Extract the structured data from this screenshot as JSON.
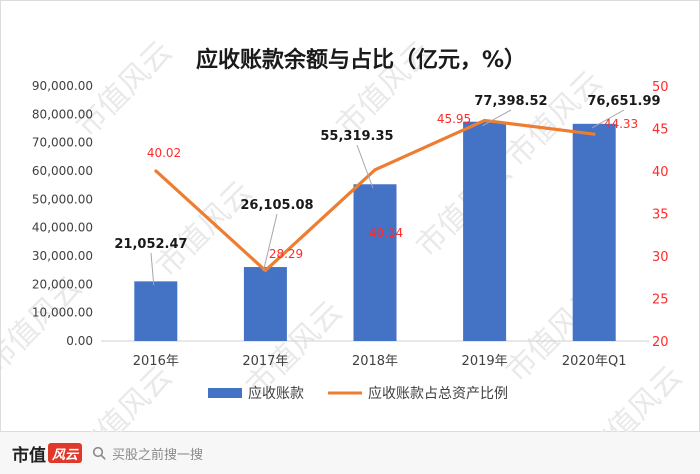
{
  "chart_data": {
    "type": "bar",
    "title": "应收账款余额与占比（亿元，%）",
    "categories": [
      "2016年",
      "2017年",
      "2018年",
      "2019年",
      "2020年Q1"
    ],
    "series": [
      {
        "name": "应收账款",
        "type": "bar",
        "axis": "left",
        "values": [
          21052.47,
          26105.08,
          55319.35,
          77398.52,
          76651.99
        ],
        "labels": [
          "21,052.47",
          "26,105.08",
          "55,319.35",
          "77,398.52",
          "76,651.99"
        ],
        "color": "#4472c4"
      },
      {
        "name": "应收账款占总资产比例",
        "type": "line",
        "axis": "right",
        "values": [
          40.02,
          28.29,
          40.14,
          45.95,
          44.33
        ],
        "labels": [
          "40.02",
          "28.29",
          "40.14",
          "45.95",
          "44.33"
        ],
        "color": "#ed7d31"
      }
    ],
    "left_axis": {
      "ylim": [
        0,
        90000
      ],
      "ticks": [
        "0.00",
        "10,000.00",
        "20,000.00",
        "30,000.00",
        "40,000.00",
        "50,000.00",
        "60,000.00",
        "70,000.00",
        "80,000.00",
        "90,000.00"
      ]
    },
    "right_axis": {
      "ylim": [
        20,
        50
      ],
      "ticks": [
        "20",
        "25",
        "30",
        "35",
        "40",
        "45",
        "50"
      ],
      "color": "#ff2b2b"
    },
    "grid": false,
    "legend_position": "bottom",
    "watermark": "市值风云"
  },
  "footer": {
    "brand_text": "市值",
    "brand_seal": "风云",
    "search_placeholder": "买股之前搜一搜"
  }
}
